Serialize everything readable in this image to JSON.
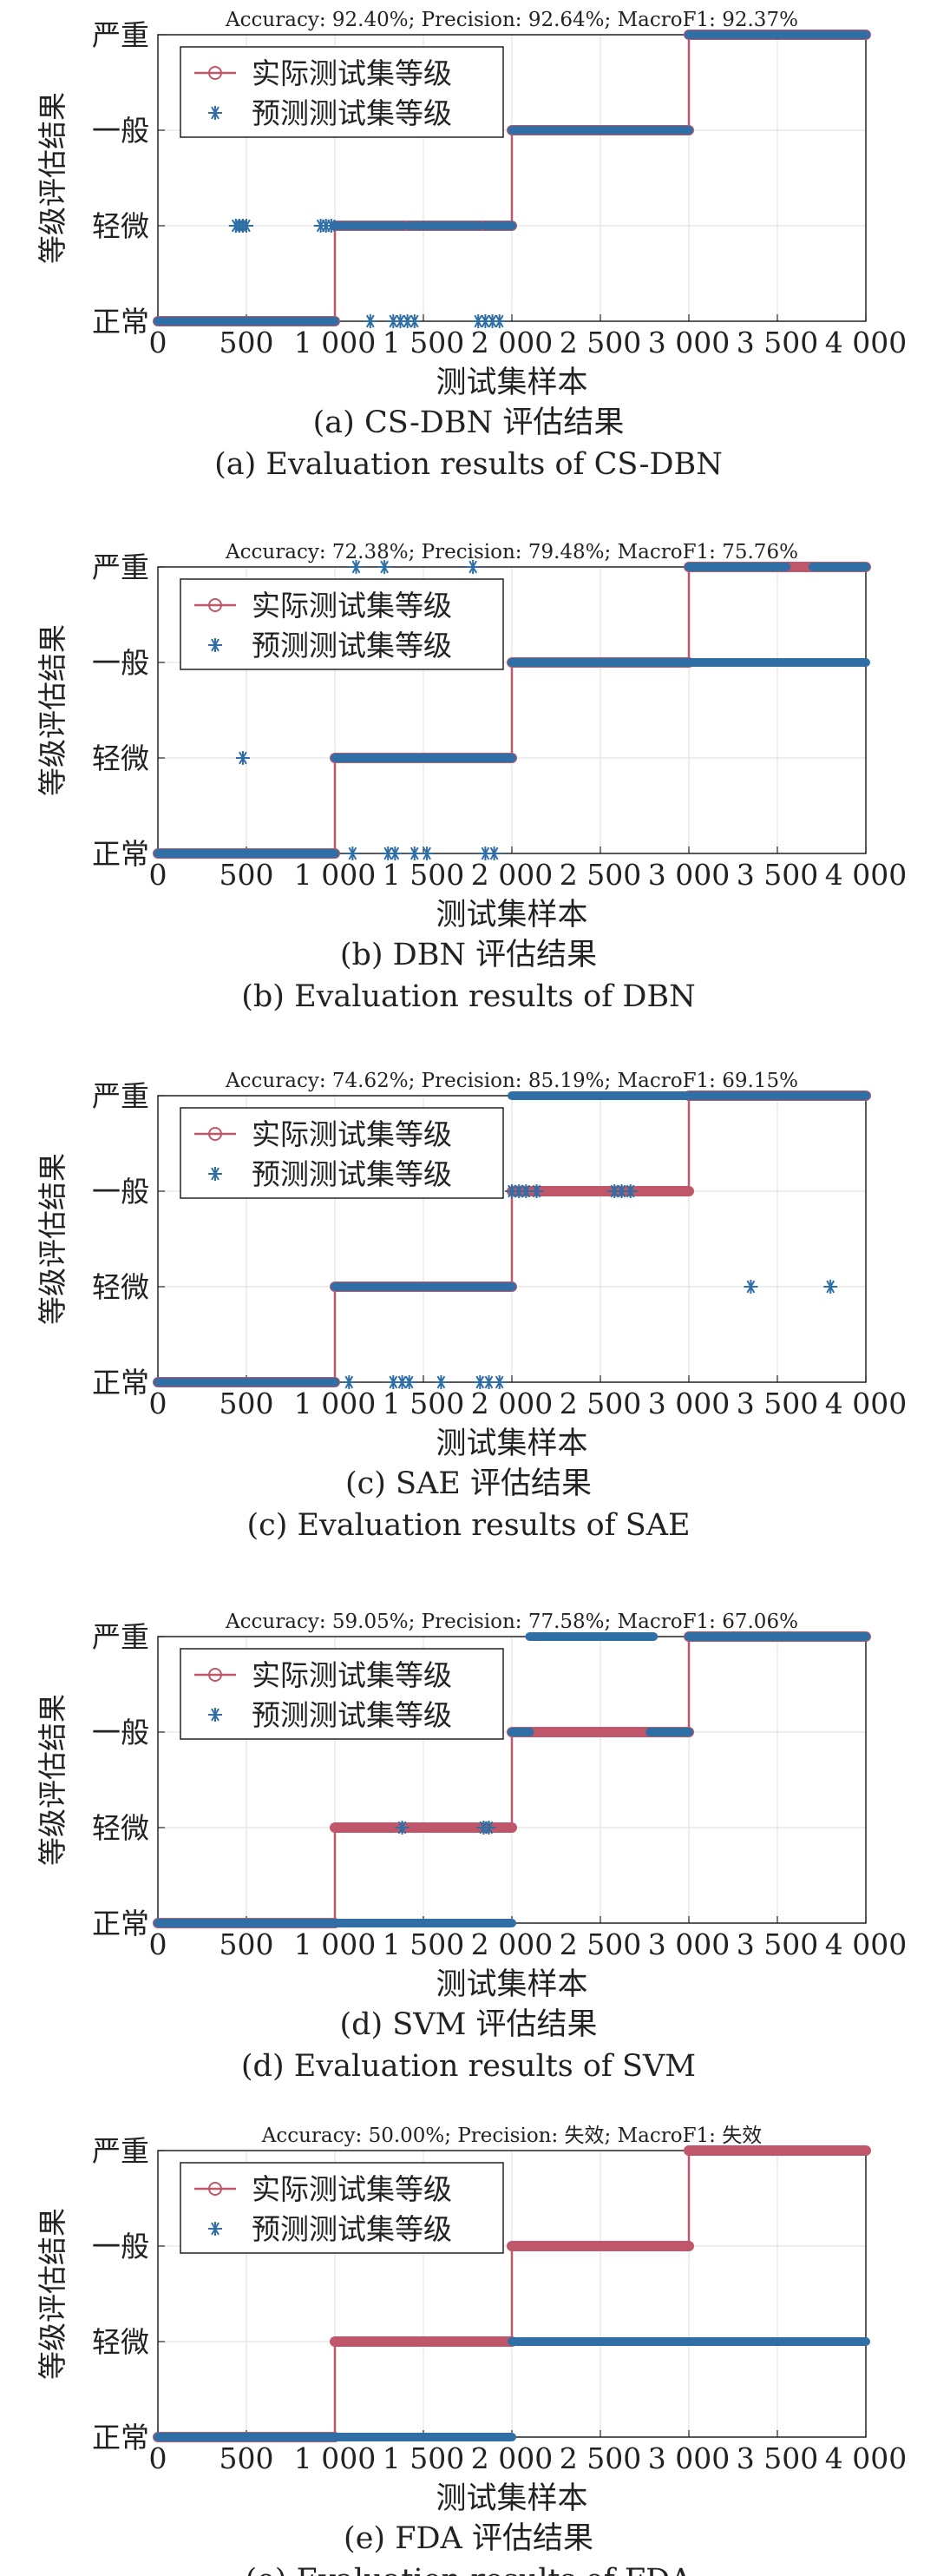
{
  "figure": {
    "panels": [
      {
        "id": "a",
        "metrics": "Accuracy: 92.40%; Precision: 92.64%; MacroF1: 92.37%",
        "caption_cn": "(a) CS-DBN 评估结果",
        "caption_en": "(a) Evaluation results of CS-DBN"
      },
      {
        "id": "b",
        "metrics": "Accuracy: 72.38%; Precision: 79.48%; MacroF1: 75.76%",
        "caption_cn": "(b) DBN 评估结果",
        "caption_en": "(b) Evaluation results of DBN"
      },
      {
        "id": "c",
        "metrics": "Accuracy: 74.62%; Precision: 85.19%; MacroF1: 69.15%",
        "caption_cn": "(c) SAE 评估结果",
        "caption_en": "(c) Evaluation results of SAE"
      },
      {
        "id": "d",
        "metrics": "Accuracy: 59.05%; Precision: 77.58%; MacroF1: 67.06%",
        "caption_cn": "(d) SVM 评估结果",
        "caption_en": "(d) Evaluation results of SVM"
      },
      {
        "id": "e",
        "metrics": "Accuracy: 50.00%; Precision: 失效; MacroF1: 失效",
        "caption_cn": "(e) FDA 评估结果",
        "caption_en": "(e) Evaluation results of FDA"
      }
    ]
  },
  "chart_data": [
    {
      "type": "scatter",
      "title": "Accuracy: 92.40%; Precision: 92.64%; MacroF1: 92.37%",
      "xlabel": "测试集样本",
      "ylabel": "等级评估结果",
      "xlim": [
        0,
        4000
      ],
      "x_ticks": [
        0,
        500,
        1000,
        1500,
        2000,
        2500,
        3000,
        3500,
        4000
      ],
      "x_tick_labels": [
        "0",
        "500",
        "1 000",
        "1 500",
        "2 000",
        "2 500",
        "3 000",
        "3 500",
        "4 000"
      ],
      "y_categories": [
        "正常",
        "轻微",
        "一般",
        "严重"
      ],
      "grid": true,
      "legend": "top-left",
      "colors": {
        "actual": "#c0566a",
        "predicted": "#2f6fa6"
      },
      "series": [
        {
          "name": "实际测试集等级",
          "style": "line-circle",
          "segments": [
            {
              "x": [
                0,
                1000
              ],
              "level": "正常"
            },
            {
              "x": [
                1000,
                2000
              ],
              "level": "轻微"
            },
            {
              "x": [
                2000,
                3000
              ],
              "level": "一般"
            },
            {
              "x": [
                3000,
                4000
              ],
              "level": "严重"
            }
          ]
        },
        {
          "name": "预测测试集等级",
          "style": "asterisk",
          "segments": [
            {
              "x": [
                0,
                1000
              ],
              "level": "正常"
            },
            {
              "x": [
                1000,
                1390
              ],
              "level": "轻微"
            },
            {
              "x": [
                1420,
                1820
              ],
              "level": "轻微"
            },
            {
              "x": [
                1850,
                2000
              ],
              "level": "轻微"
            },
            {
              "x": [
                2000,
                3000
              ],
              "level": "一般"
            },
            {
              "x": [
                3000,
                4000
              ],
              "level": "严重"
            }
          ],
          "points": [
            {
              "x": 440,
              "level": "轻微"
            },
            {
              "x": 460,
              "level": "轻微"
            },
            {
              "x": 480,
              "level": "轻微"
            },
            {
              "x": 500,
              "level": "轻微"
            },
            {
              "x": 920,
              "level": "轻微"
            },
            {
              "x": 950,
              "level": "轻微"
            },
            {
              "x": 980,
              "level": "轻微"
            },
            {
              "x": 1200,
              "level": "正常"
            },
            {
              "x": 1330,
              "level": "正常"
            },
            {
              "x": 1370,
              "level": "正常"
            },
            {
              "x": 1410,
              "level": "正常"
            },
            {
              "x": 1450,
              "level": "正常"
            },
            {
              "x": 1810,
              "level": "正常"
            },
            {
              "x": 1850,
              "level": "正常"
            },
            {
              "x": 1890,
              "level": "正常"
            },
            {
              "x": 1930,
              "level": "正常"
            }
          ]
        }
      ]
    },
    {
      "type": "scatter",
      "title": "Accuracy: 72.38%; Precision: 79.48%; MacroF1: 75.76%",
      "xlabel": "测试集样本",
      "ylabel": "等级评估结果",
      "xlim": [
        0,
        4000
      ],
      "x_ticks": [
        0,
        500,
        1000,
        1500,
        2000,
        2500,
        3000,
        3500,
        4000
      ],
      "x_tick_labels": [
        "0",
        "500",
        "1 000",
        "1 500",
        "2 000",
        "2 500",
        "3 000",
        "3 500",
        "4 000"
      ],
      "y_categories": [
        "正常",
        "轻微",
        "一般",
        "严重"
      ],
      "grid": true,
      "legend": "top-left",
      "series": [
        {
          "name": "实际测试集等级",
          "style": "line-circle",
          "segments": [
            {
              "x": [
                0,
                1000
              ],
              "level": "正常"
            },
            {
              "x": [
                1000,
                2000
              ],
              "level": "轻微"
            },
            {
              "x": [
                2000,
                3000
              ],
              "level": "一般"
            },
            {
              "x": [
                3000,
                4000
              ],
              "level": "严重"
            }
          ]
        },
        {
          "name": "预测测试集等级",
          "style": "asterisk",
          "segments": [
            {
              "x": [
                0,
                1000
              ],
              "level": "正常"
            },
            {
              "x": [
                1000,
                2000
              ],
              "level": "轻微"
            },
            {
              "x": [
                2000,
                4000
              ],
              "level": "一般"
            },
            {
              "x": [
                3000,
                3550
              ],
              "level": "严重"
            },
            {
              "x": [
                3700,
                4000
              ],
              "level": "严重"
            }
          ],
          "points": [
            {
              "x": 480,
              "level": "轻微"
            },
            {
              "x": 1120,
              "level": "严重"
            },
            {
              "x": 1280,
              "level": "严重"
            },
            {
              "x": 1780,
              "level": "严重"
            },
            {
              "x": 1100,
              "level": "正常"
            },
            {
              "x": 1300,
              "level": "正常"
            },
            {
              "x": 1340,
              "level": "正常"
            },
            {
              "x": 1450,
              "level": "正常"
            },
            {
              "x": 1520,
              "level": "正常"
            },
            {
              "x": 1850,
              "level": "正常"
            },
            {
              "x": 1900,
              "level": "正常"
            }
          ]
        }
      ]
    },
    {
      "type": "scatter",
      "title": "Accuracy: 74.62%; Precision: 85.19%; MacroF1: 69.15%",
      "xlabel": "测试集样本",
      "ylabel": "等级评估结果",
      "xlim": [
        0,
        4000
      ],
      "x_ticks": [
        0,
        500,
        1000,
        1500,
        2000,
        2500,
        3000,
        3500,
        4000
      ],
      "x_tick_labels": [
        "0",
        "500",
        "1 000",
        "1 500",
        "2 000",
        "2 500",
        "3 000",
        "3 500",
        "4 000"
      ],
      "y_categories": [
        "正常",
        "轻微",
        "一般",
        "严重"
      ],
      "grid": true,
      "legend": "top-left",
      "series": [
        {
          "name": "实际测试集等级",
          "style": "line-circle",
          "segments": [
            {
              "x": [
                0,
                1000
              ],
              "level": "正常"
            },
            {
              "x": [
                1000,
                2000
              ],
              "level": "轻微"
            },
            {
              "x": [
                2000,
                3000
              ],
              "level": "一般"
            },
            {
              "x": [
                3000,
                4000
              ],
              "level": "严重"
            }
          ]
        },
        {
          "name": "预测测试集等级",
          "style": "asterisk",
          "segments": [
            {
              "x": [
                0,
                1000
              ],
              "level": "正常"
            },
            {
              "x": [
                1000,
                2000
              ],
              "level": "轻微"
            },
            {
              "x": [
                2000,
                4000
              ],
              "level": "严重"
            }
          ],
          "points": [
            {
              "x": 2000,
              "level": "一般"
            },
            {
              "x": 2040,
              "level": "一般"
            },
            {
              "x": 2080,
              "level": "一般"
            },
            {
              "x": 2140,
              "level": "一般"
            },
            {
              "x": 2580,
              "level": "一般"
            },
            {
              "x": 2620,
              "level": "一般"
            },
            {
              "x": 2670,
              "level": "一般"
            },
            {
              "x": 3350,
              "level": "轻微"
            },
            {
              "x": 3800,
              "level": "轻微"
            },
            {
              "x": 1080,
              "level": "正常"
            },
            {
              "x": 1330,
              "level": "正常"
            },
            {
              "x": 1380,
              "level": "正常"
            },
            {
              "x": 1420,
              "level": "正常"
            },
            {
              "x": 1600,
              "level": "正常"
            },
            {
              "x": 1820,
              "level": "正常"
            },
            {
              "x": 1870,
              "level": "正常"
            },
            {
              "x": 1930,
              "level": "正常"
            }
          ]
        }
      ]
    },
    {
      "type": "scatter",
      "title": "Accuracy: 59.05%; Precision: 77.58%; MacroF1: 67.06%",
      "xlabel": "测试集样本",
      "ylabel": "等级评估结果",
      "xlim": [
        0,
        4000
      ],
      "x_ticks": [
        0,
        500,
        1000,
        1500,
        2000,
        2500,
        3000,
        3500,
        4000
      ],
      "x_tick_labels": [
        "0",
        "500",
        "1 000",
        "1 500",
        "2 000",
        "2 500",
        "3 000",
        "3 500",
        "4 000"
      ],
      "y_categories": [
        "正常",
        "轻微",
        "一般",
        "严重"
      ],
      "grid": true,
      "legend": "top-left",
      "series": [
        {
          "name": "实际测试集等级",
          "style": "line-circle",
          "segments": [
            {
              "x": [
                0,
                1000
              ],
              "level": "正常"
            },
            {
              "x": [
                1000,
                2000
              ],
              "level": "轻微"
            },
            {
              "x": [
                2000,
                3000
              ],
              "level": "一般"
            },
            {
              "x": [
                3000,
                4000
              ],
              "level": "严重"
            }
          ]
        },
        {
          "name": "预测测试集等级",
          "style": "asterisk",
          "segments": [
            {
              "x": [
                0,
                2000
              ],
              "level": "正常"
            },
            {
              "x": [
                2100,
                2800
              ],
              "level": "严重"
            },
            {
              "x": [
                3000,
                4000
              ],
              "level": "严重"
            },
            {
              "x": [
                2000,
                2100
              ],
              "level": "一般"
            },
            {
              "x": [
                2780,
                3000
              ],
              "level": "一般"
            }
          ],
          "points": [
            {
              "x": 1380,
              "level": "轻微"
            },
            {
              "x": 1840,
              "level": "轻微"
            },
            {
              "x": 1870,
              "level": "轻微"
            }
          ]
        }
      ]
    },
    {
      "type": "scatter",
      "title": "Accuracy: 50.00%; Precision: 失效; MacroF1: 失效",
      "xlabel": "测试集样本",
      "ylabel": "等级评估结果",
      "xlim": [
        0,
        4000
      ],
      "x_ticks": [
        0,
        500,
        1000,
        1500,
        2000,
        2500,
        3000,
        3500,
        4000
      ],
      "x_tick_labels": [
        "0",
        "500",
        "1 000",
        "1 500",
        "2 000",
        "2 500",
        "3 000",
        "3 500",
        "4 000"
      ],
      "y_categories": [
        "正常",
        "轻微",
        "一般",
        "严重"
      ],
      "grid": true,
      "legend": "top-left",
      "series": [
        {
          "name": "实际测试集等级",
          "style": "line-circle",
          "segments": [
            {
              "x": [
                0,
                1000
              ],
              "level": "正常"
            },
            {
              "x": [
                1000,
                2000
              ],
              "level": "轻微"
            },
            {
              "x": [
                2000,
                3000
              ],
              "level": "一般"
            },
            {
              "x": [
                3000,
                4000
              ],
              "level": "严重"
            }
          ]
        },
        {
          "name": "预测测试集等级",
          "style": "asterisk",
          "segments": [
            {
              "x": [
                0,
                2000
              ],
              "level": "正常"
            },
            {
              "x": [
                2000,
                4000
              ],
              "level": "轻微"
            }
          ],
          "points": []
        }
      ]
    }
  ]
}
